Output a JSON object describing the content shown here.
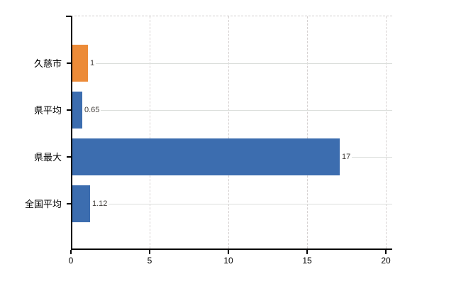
{
  "chart_data": {
    "type": "bar",
    "orientation": "horizontal",
    "title": "",
    "xlabel": "",
    "ylabel": "",
    "categories": [
      "久慈市",
      "県平均",
      "県最大",
      "全国平均"
    ],
    "values": [
      1,
      0.65,
      17,
      1.12
    ],
    "value_labels": [
      "1",
      "0.65",
      "17",
      "1.12"
    ],
    "bar_colors": [
      "#ec8b38",
      "#3c6daf",
      "#3c6daf",
      "#3c6daf"
    ],
    "xlim": [
      0,
      20
    ],
    "x_ticks": [
      0,
      5,
      10,
      15,
      20
    ],
    "x_tick_labels": [
      "0",
      "5",
      "10",
      "15",
      "20"
    ],
    "grid": true,
    "legend": false
  },
  "colors": {
    "background": "#ffffff",
    "axis": "#000000",
    "gridline": "#d6d1d1",
    "leader_line": "#dcdfdc",
    "value_label_text": "#3f3b37",
    "category_label_text": "#000000"
  }
}
